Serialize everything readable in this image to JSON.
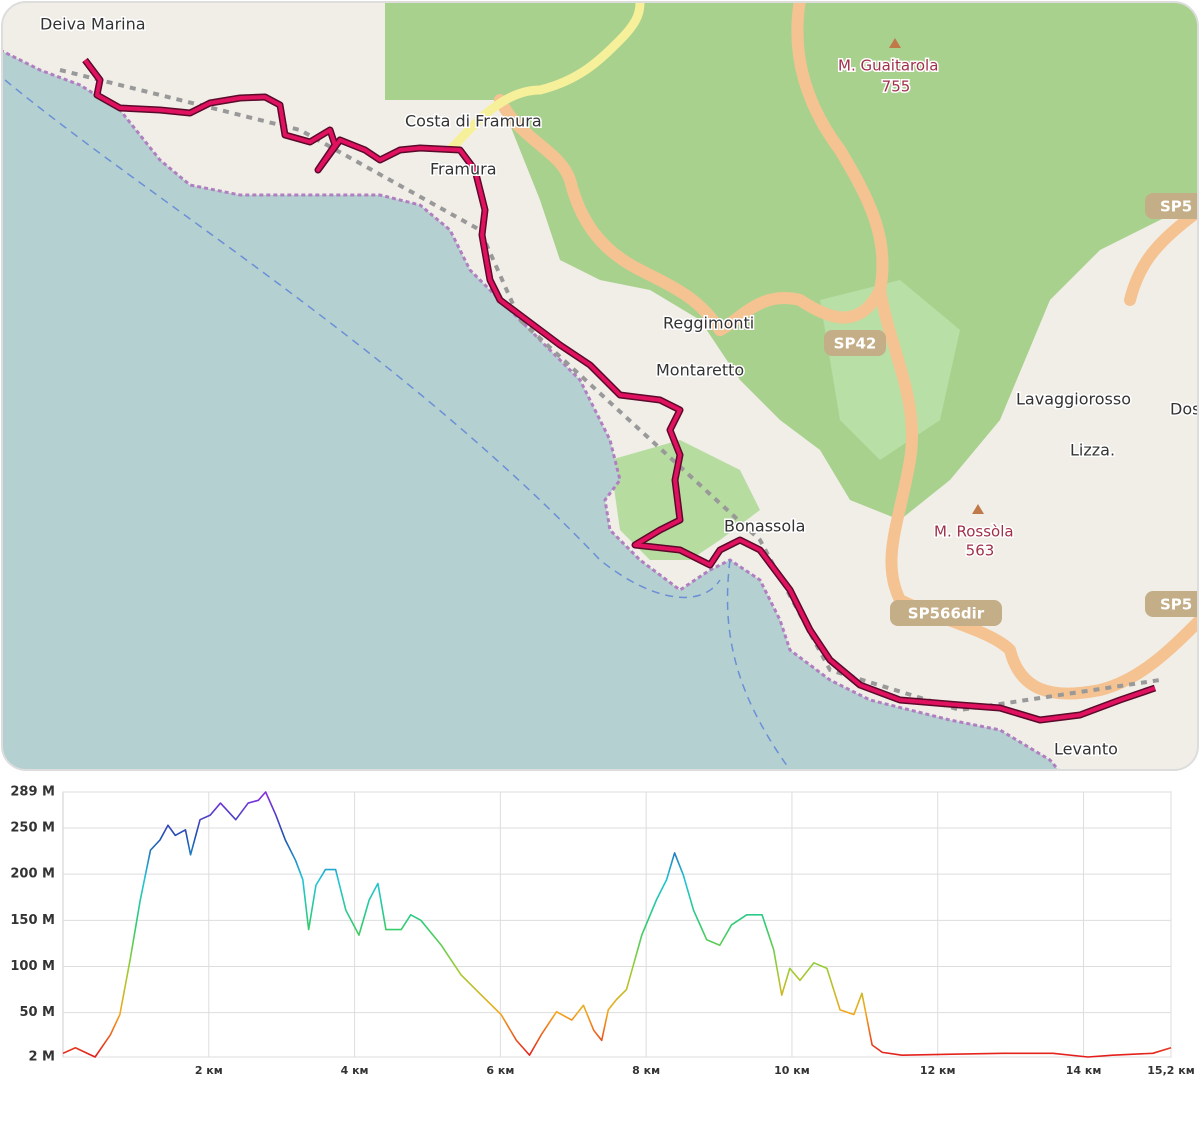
{
  "map": {
    "labels": [
      "Deiva Marina",
      "Costa di Framura",
      "Framura",
      "Reggimonti",
      "Montaretto",
      "Lavaggiorosso",
      "Dos",
      "Lizza.",
      "Bonassola",
      "Levanto"
    ],
    "peaks": [
      {
        "name": "M. Guaitarola",
        "height": "755"
      },
      {
        "name": "M. Rossòla",
        "height": "563"
      }
    ],
    "roads": [
      "SP42",
      "SP566dir",
      "SP5",
      "SP5"
    ]
  },
  "chart_data": {
    "type": "line",
    "x": [
      0,
      0.17,
      0.44,
      0.65,
      0.78,
      0.92,
      1.06,
      1.2,
      1.33,
      1.44,
      1.54,
      1.68,
      1.75,
      1.88,
      2.02,
      2.16,
      2.37,
      2.54,
      2.68,
      2.78,
      2.92,
      3.05,
      3.19,
      3.29,
      3.37,
      3.47,
      3.6,
      3.74,
      3.88,
      4.06,
      4.2,
      4.32,
      4.43,
      4.64,
      4.77,
      4.91,
      5.19,
      5.46,
      5.74,
      6.01,
      6.22,
      6.4,
      6.56,
      6.77,
      6.98,
      7.14,
      7.28,
      7.39,
      7.48,
      7.59,
      7.73,
      7.94,
      8.14,
      8.28,
      8.39,
      8.51,
      8.65,
      8.83,
      9.01,
      9.17,
      9.38,
      9.59,
      9.75,
      9.86,
      9.97,
      10.11,
      10.3,
      10.48,
      10.66,
      10.85,
      10.96,
      11.1,
      11.24,
      11.51,
      12.2,
      12.89,
      13.58,
      14.06,
      14.4,
      14.95,
      15.2
    ],
    "values": [
      6,
      12,
      2,
      26,
      48,
      107,
      172,
      226,
      237,
      253,
      242,
      248,
      221,
      259,
      264,
      277,
      259,
      277,
      280,
      289,
      264,
      237,
      215,
      194,
      140,
      188,
      205,
      205,
      161,
      134,
      172,
      190,
      140,
      140,
      156,
      150,
      123,
      91,
      69,
      48,
      20,
      4,
      26,
      51,
      42,
      58,
      31,
      20,
      53,
      64,
      75,
      134,
      172,
      194,
      223,
      199,
      161,
      129,
      123,
      145,
      156,
      156,
      118,
      69,
      98,
      85,
      104,
      98,
      53,
      48,
      71,
      15,
      7,
      4,
      5,
      6,
      6,
      2,
      4,
      6,
      12
    ],
    "colors": [
      "#e31a1c",
      "#f2a81d",
      "#9acd32",
      "#2ecc71",
      "#20c4d8",
      "#1f4fb0",
      "#8a2be2"
    ],
    "xlim": [
      0,
      15.2
    ],
    "ylim": [
      2,
      289
    ],
    "xticks": [
      {
        "value": 2,
        "label": "2 км"
      },
      {
        "value": 4,
        "label": "4 км"
      },
      {
        "value": 6,
        "label": "6 км"
      },
      {
        "value": 8,
        "label": "8 км"
      },
      {
        "value": 10,
        "label": "10 км"
      },
      {
        "value": 12,
        "label": "12 км"
      },
      {
        "value": 14,
        "label": "14 км"
      },
      {
        "value": 15.2,
        "label": "15,2 км"
      }
    ],
    "yticks": [
      {
        "value": 2,
        "label": "2 M"
      },
      {
        "value": 50,
        "label": "50 M"
      },
      {
        "value": 100,
        "label": "100 M"
      },
      {
        "value": 150,
        "label": "150 M"
      },
      {
        "value": 200,
        "label": "200 M"
      },
      {
        "value": 250,
        "label": "250 M"
      },
      {
        "value": 289,
        "label": "289 M"
      }
    ],
    "grid": true
  }
}
